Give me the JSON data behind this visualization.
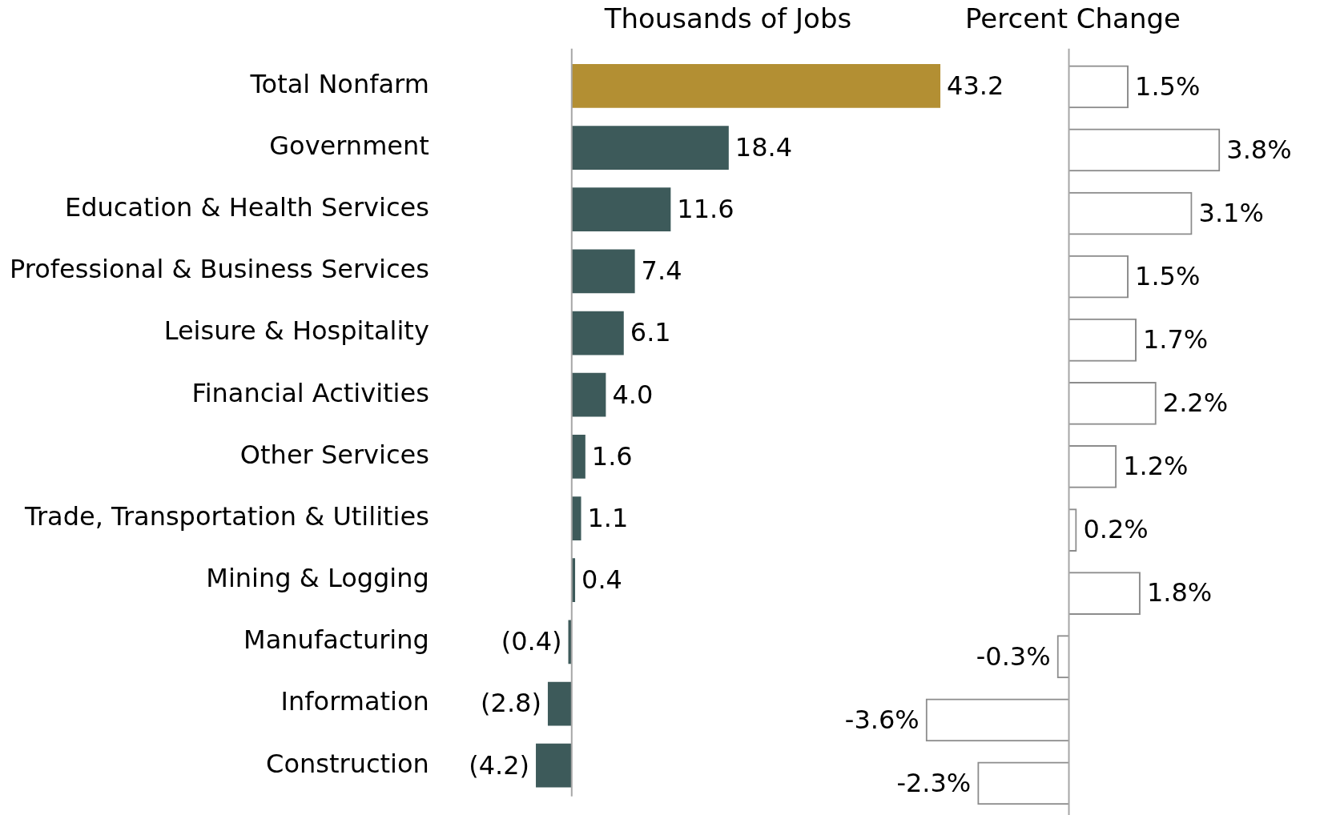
{
  "chart_data": [
    {
      "type": "bar",
      "orientation": "horizontal",
      "title": "Thousands of Jobs",
      "tick_labels": "y",
      "categories": [
        "Total Nonfarm",
        "Government",
        "Education & Health Services",
        "Professional & Business Services",
        "Leisure & Hospitality",
        "Financial Activities",
        "Other Services",
        "Trade, Transportation & Utilities",
        "Mining & Logging",
        "Manufacturing",
        "Information",
        "Construction"
      ],
      "values": [
        43.2,
        18.4,
        11.6,
        7.4,
        6.1,
        4.0,
        1.6,
        1.1,
        0.4,
        -0.4,
        -2.8,
        -4.2
      ],
      "value_labels": [
        "43.2",
        "18.4",
        "11.6",
        "7.4",
        "6.1",
        "4.0",
        "1.6",
        "1.1",
        "0.4",
        "(0.4)",
        "(2.8)",
        "(4.2)"
      ],
      "colors": [
        "#b38f33",
        "#3d5a5a",
        "#3d5a5a",
        "#3d5a5a",
        "#3d5a5a",
        "#3d5a5a",
        "#3d5a5a",
        "#3d5a5a",
        "#3d5a5a",
        "#3d5a5a",
        "#3d5a5a",
        "#3d5a5a"
      ]
    },
    {
      "type": "bar",
      "orientation": "horizontal",
      "title": "Percent Change",
      "tick_labels": false,
      "categories": [
        null,
        null,
        null,
        null,
        null,
        null,
        null,
        null,
        null,
        null,
        null,
        null
      ],
      "values": [
        1.5,
        3.8,
        3.1,
        1.5,
        1.7,
        2.2,
        1.2,
        0.2,
        1.8,
        -0.3,
        -3.6,
        -2.3
      ],
      "value_labels": [
        "1.5%",
        "3.8%",
        "3.1%",
        "1.5%",
        "1.7%",
        "2.2%",
        "1.2%",
        "0.2%",
        "1.8%",
        "-0.3%",
        "-3.6%",
        "-2.3%"
      ],
      "color": "#8c8c8c"
    }
  ]
}
